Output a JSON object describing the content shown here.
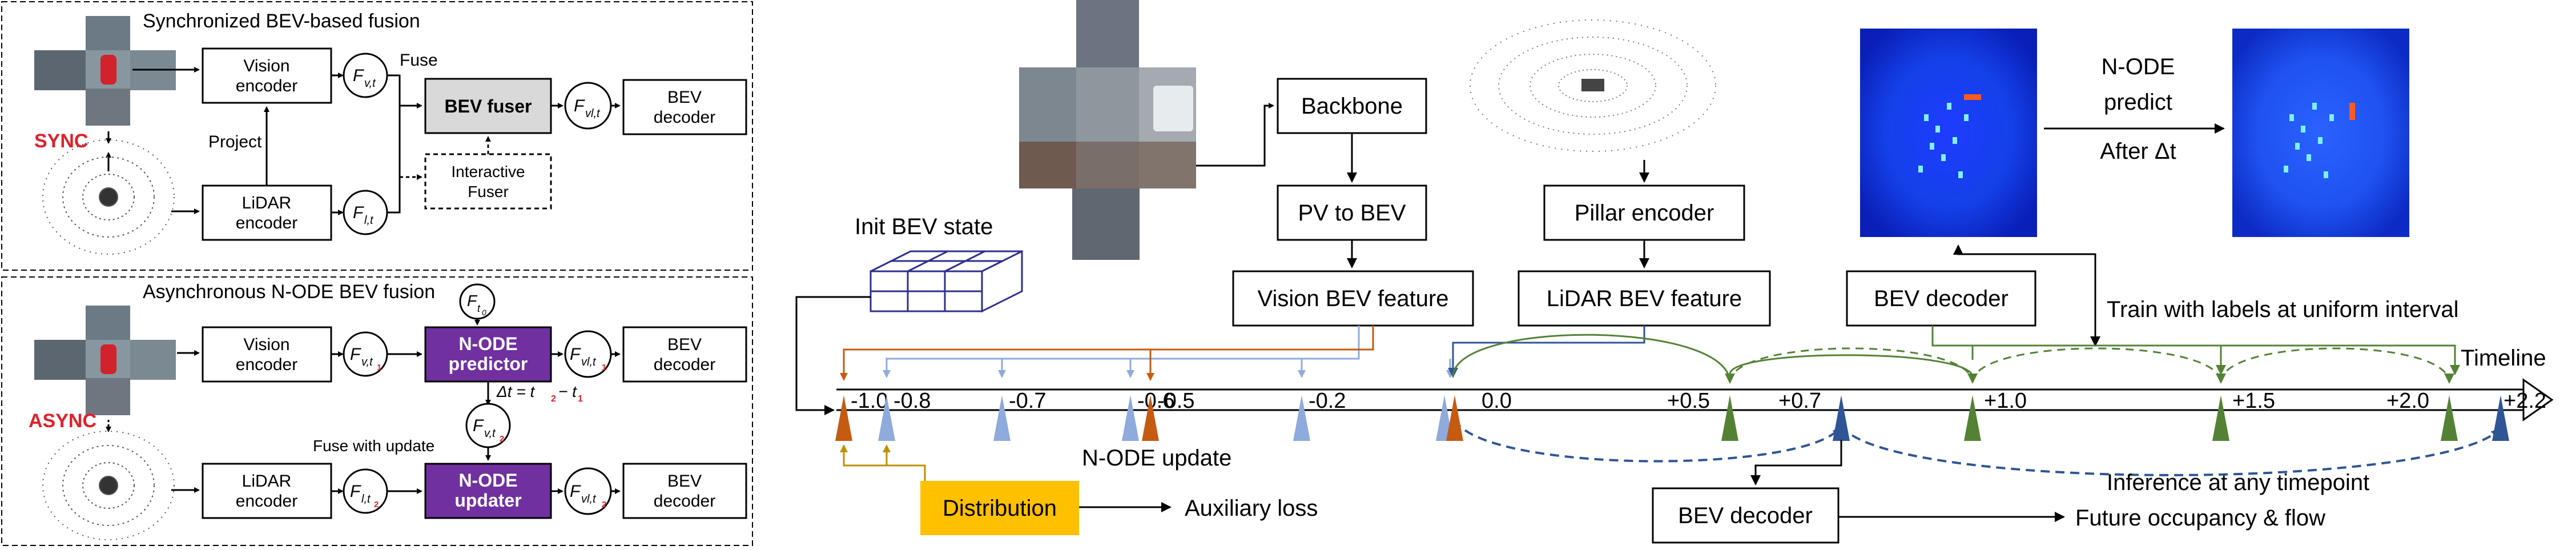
{
  "left_panel": {
    "sync": {
      "title": "Synchronized BEV-based fusion",
      "label": "SYNC",
      "vision_encoder": [
        "Vision",
        "encoder"
      ],
      "lidar_encoder": [
        "LiDAR",
        "encoder"
      ],
      "project": "Project",
      "fuse": "Fuse",
      "bev_fuser": "BEV fuser",
      "interactive_fuser": [
        "Interactive",
        "Fuser"
      ],
      "bev_decoder": [
        "BEV",
        "decoder"
      ],
      "f_v": {
        "main": "F",
        "sub": "v,t"
      },
      "f_l": {
        "main": "F",
        "sub": "l,t"
      },
      "f_vl": {
        "main": "F",
        "sub": "vl,t"
      }
    },
    "async": {
      "title": "Asynchronous N-ODE BEV fusion",
      "label": "ASYNC",
      "vision_encoder": [
        "Vision",
        "encoder"
      ],
      "lidar_encoder": [
        "LiDAR",
        "encoder"
      ],
      "node_predictor": [
        "N-ODE",
        "predictor"
      ],
      "node_updater": [
        "N-ODE",
        "updater"
      ],
      "bev_decoder_1": [
        "BEV",
        "decoder"
      ],
      "bev_decoder_2": [
        "BEV",
        "decoder"
      ],
      "delta_t": "Δt = t",
      "fuse_with_update": "Fuse with update",
      "f_t0": {
        "main": "F",
        "sub": "t",
        "subsub": "0"
      },
      "f_v_t1": {
        "main": "F",
        "sub": "v,t",
        "subsub": "1"
      },
      "f_vl_t1": {
        "main": "F",
        "sub": "vl,t",
        "subsub": "1"
      },
      "f_v_t2": {
        "main": "F",
        "sub": "v,t",
        "subsub": "2"
      },
      "f_l_t2": {
        "main": "F",
        "sub": "l,t",
        "subsub": "2"
      },
      "f_vl_t2": {
        "main": "F",
        "sub": "vl,t",
        "subsub": "2"
      }
    }
  },
  "right_panel": {
    "backbone": "Backbone",
    "pv_to_bev": "PV to BEV",
    "vision_bev_feature": "Vision BEV feature",
    "pillar_encoder": "Pillar encoder",
    "lidar_bev_feature": "LiDAR BEV feature",
    "init_bev_state": "Init BEV state",
    "bev_decoder_top": "BEV decoder",
    "node_predict": [
      "N-ODE",
      "predict"
    ],
    "after_dt": "After Δt",
    "train_labels": "Train with labels at uniform interval",
    "timeline": "Timeline",
    "node_update": "N-ODE update",
    "distribution": "Distribution",
    "auxiliary_loss": "Auxiliary loss",
    "inference_any": "Inference at any timepoint",
    "bev_decoder_bottom": "BEV decoder",
    "future_occupancy": "Future occupancy & flow",
    "ticks": [
      "-1.0",
      "-0.8",
      "-0.7",
      "-0.6",
      "-0.5",
      "-0.2",
      "0.0",
      "+0.5",
      "+0.7",
      "+1.0",
      "+1.5",
      "+2.0",
      "+2.2"
    ],
    "colors": {
      "lidar_orange": "#c55a11",
      "vision_blue": "#8faadc",
      "label_green": "#548235",
      "inference_navy": "#2f5597",
      "distribution_gold": "#ffc000",
      "node_purple": "#7030a0"
    }
  }
}
